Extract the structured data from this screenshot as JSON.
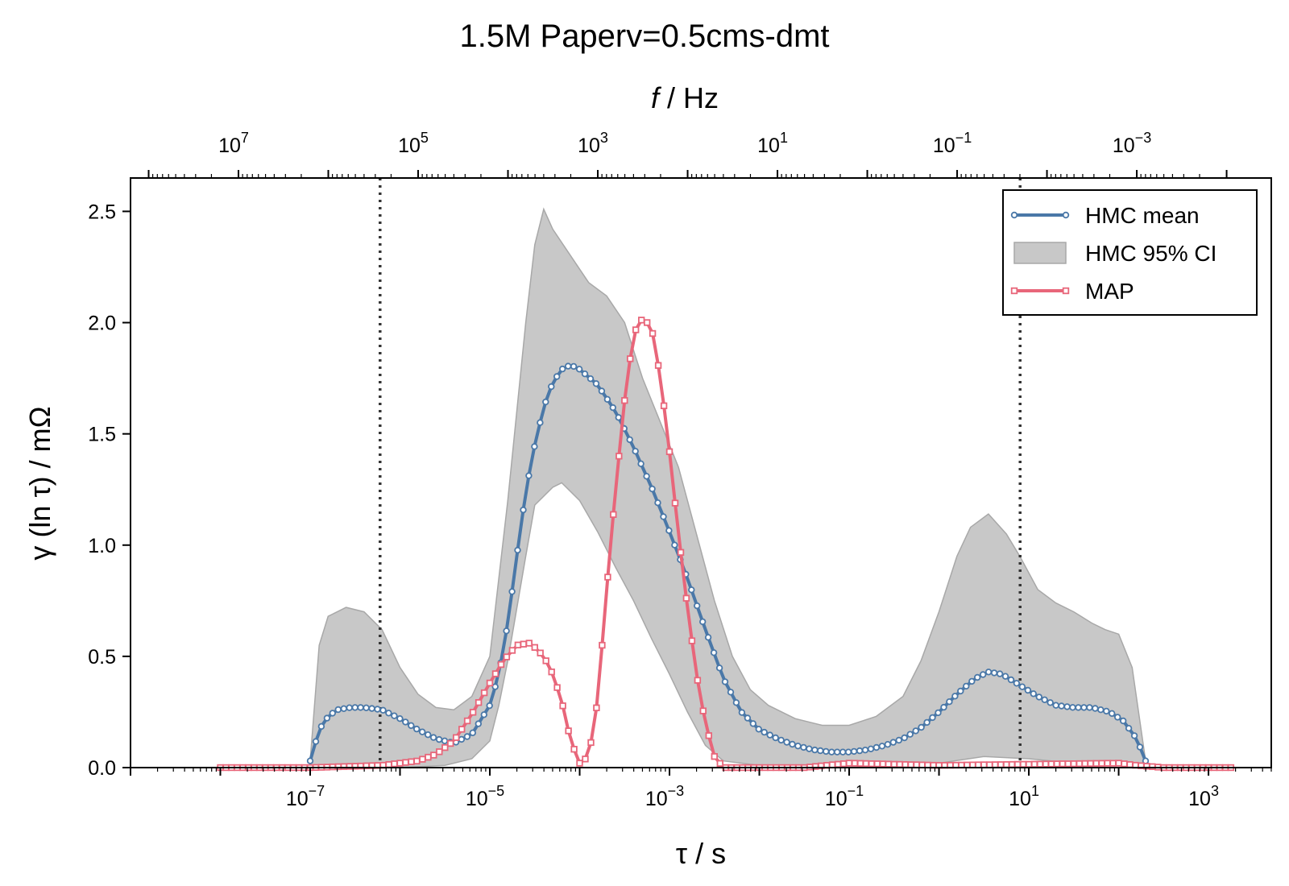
{
  "title": "1.5M Paperv=0.5cms-dmt",
  "chart_data": {
    "type": "line",
    "title": "1.5M Paperv=0.5cms-dmt",
    "xlabel": "τ / s",
    "ylabel": "γ (ln τ) / mΩ",
    "x2label": "f / Hz",
    "x_scale": "log",
    "x_range": [
      1e-09,
      5000
    ],
    "y_range": [
      0,
      2.65
    ],
    "x_ticks": [
      {
        "value": 1e-07,
        "base": "10",
        "exp": "−7"
      },
      {
        "value": 1e-05,
        "base": "10",
        "exp": "−5"
      },
      {
        "value": 0.001,
        "base": "10",
        "exp": "−3"
      },
      {
        "value": 0.1,
        "base": "10",
        "exp": "−1"
      },
      {
        "value": 10,
        "base": "10",
        "exp": "1"
      },
      {
        "value": 1000,
        "base": "10",
        "exp": "3"
      }
    ],
    "x2_ticks": [
      {
        "value": 10000000.0,
        "base": "10",
        "exp": "7"
      },
      {
        "value": 100000.0,
        "base": "10",
        "exp": "5"
      },
      {
        "value": 1000.0,
        "base": "10",
        "exp": "3"
      },
      {
        "value": 10,
        "base": "10",
        "exp": "1"
      },
      {
        "value": 0.1,
        "base": "10",
        "exp": "−1"
      },
      {
        "value": 0.001,
        "base": "10",
        "exp": "−3"
      }
    ],
    "y_ticks": [
      "0.0",
      "0.5",
      "1.0",
      "1.5",
      "2.0",
      "2.5"
    ],
    "grid": false,
    "legend_position": "top-right",
    "vlines_tau": [
      6e-07,
      8
    ],
    "series": [
      {
        "name": "HMC mean",
        "color": "#4a78a8",
        "marker": "circle",
        "points": [
          [
            -7.0,
            0.03
          ],
          [
            -6.9,
            0.17
          ],
          [
            -6.8,
            0.23
          ],
          [
            -6.7,
            0.26
          ],
          [
            -6.55,
            0.27
          ],
          [
            -6.4,
            0.27
          ],
          [
            -6.2,
            0.26
          ],
          [
            -6.0,
            0.22
          ],
          [
            -5.8,
            0.17
          ],
          [
            -5.6,
            0.13
          ],
          [
            -5.4,
            0.11
          ],
          [
            -5.2,
            0.15
          ],
          [
            -5.0,
            0.28
          ],
          [
            -4.9,
            0.42
          ],
          [
            -4.8,
            0.65
          ],
          [
            -4.7,
            0.95
          ],
          [
            -4.6,
            1.24
          ],
          [
            -4.5,
            1.45
          ],
          [
            -4.4,
            1.62
          ],
          [
            -4.3,
            1.73
          ],
          [
            -4.2,
            1.79
          ],
          [
            -4.1,
            1.81
          ],
          [
            -4.0,
            1.79
          ],
          [
            -3.8,
            1.72
          ],
          [
            -3.6,
            1.6
          ],
          [
            -3.4,
            1.44
          ],
          [
            -3.2,
            1.26
          ],
          [
            -3.0,
            1.06
          ],
          [
            -2.8,
            0.85
          ],
          [
            -2.6,
            0.62
          ],
          [
            -2.4,
            0.4
          ],
          [
            -2.2,
            0.25
          ],
          [
            -2.0,
            0.17
          ],
          [
            -1.8,
            0.13
          ],
          [
            -1.6,
            0.1
          ],
          [
            -1.4,
            0.08
          ],
          [
            -1.2,
            0.07
          ],
          [
            -1.0,
            0.07
          ],
          [
            -0.8,
            0.08
          ],
          [
            -0.6,
            0.1
          ],
          [
            -0.4,
            0.13
          ],
          [
            -0.2,
            0.18
          ],
          [
            0.0,
            0.25
          ],
          [
            0.2,
            0.33
          ],
          [
            0.4,
            0.4
          ],
          [
            0.55,
            0.43
          ],
          [
            0.7,
            0.42
          ],
          [
            0.9,
            0.37
          ],
          [
            1.1,
            0.32
          ],
          [
            1.3,
            0.28
          ],
          [
            1.5,
            0.27
          ],
          [
            1.7,
            0.27
          ],
          [
            1.9,
            0.25
          ],
          [
            2.05,
            0.21
          ],
          [
            2.2,
            0.13
          ],
          [
            2.3,
            0.03
          ]
        ]
      },
      {
        "name": "HMC 95% CI",
        "color": "#c8c8c8",
        "type": "area",
        "upper": [
          [
            -7.0,
            0.03
          ],
          [
            -6.9,
            0.55
          ],
          [
            -6.8,
            0.68
          ],
          [
            -6.6,
            0.72
          ],
          [
            -6.4,
            0.7
          ],
          [
            -6.2,
            0.62
          ],
          [
            -6.0,
            0.45
          ],
          [
            -5.8,
            0.33
          ],
          [
            -5.6,
            0.27
          ],
          [
            -5.4,
            0.26
          ],
          [
            -5.2,
            0.32
          ],
          [
            -5.0,
            0.5
          ],
          [
            -4.8,
            1.2
          ],
          [
            -4.6,
            2.0
          ],
          [
            -4.5,
            2.35
          ],
          [
            -4.4,
            2.51
          ],
          [
            -4.3,
            2.42
          ],
          [
            -4.1,
            2.3
          ],
          [
            -3.9,
            2.18
          ],
          [
            -3.7,
            2.12
          ],
          [
            -3.5,
            2.0
          ],
          [
            -3.3,
            1.75
          ],
          [
            -3.1,
            1.55
          ],
          [
            -2.9,
            1.35
          ],
          [
            -2.7,
            1.05
          ],
          [
            -2.5,
            0.75
          ],
          [
            -2.3,
            0.5
          ],
          [
            -2.1,
            0.35
          ],
          [
            -1.9,
            0.28
          ],
          [
            -1.6,
            0.22
          ],
          [
            -1.3,
            0.19
          ],
          [
            -1.0,
            0.19
          ],
          [
            -0.7,
            0.23
          ],
          [
            -0.4,
            0.32
          ],
          [
            -0.2,
            0.48
          ],
          [
            0.0,
            0.7
          ],
          [
            0.2,
            0.95
          ],
          [
            0.35,
            1.08
          ],
          [
            0.55,
            1.14
          ],
          [
            0.75,
            1.05
          ],
          [
            0.9,
            0.95
          ],
          [
            1.1,
            0.8
          ],
          [
            1.3,
            0.74
          ],
          [
            1.5,
            0.7
          ],
          [
            1.7,
            0.65
          ],
          [
            1.85,
            0.62
          ],
          [
            2.0,
            0.6
          ],
          [
            2.15,
            0.45
          ],
          [
            2.3,
            0.03
          ]
        ],
        "lower": [
          [
            -7.0,
            0.0
          ],
          [
            -6.0,
            0.0
          ],
          [
            -5.5,
            0.01
          ],
          [
            -5.2,
            0.04
          ],
          [
            -5.0,
            0.12
          ],
          [
            -4.9,
            0.28
          ],
          [
            -4.8,
            0.48
          ],
          [
            -4.6,
            0.95
          ],
          [
            -4.5,
            1.18
          ],
          [
            -4.3,
            1.26
          ],
          [
            -4.2,
            1.28
          ],
          [
            -4.0,
            1.2
          ],
          [
            -3.8,
            1.06
          ],
          [
            -3.6,
            0.9
          ],
          [
            -3.4,
            0.75
          ],
          [
            -3.2,
            0.58
          ],
          [
            -3.0,
            0.42
          ],
          [
            -2.8,
            0.25
          ],
          [
            -2.6,
            0.1
          ],
          [
            -2.4,
            0.03
          ],
          [
            -2.0,
            0.01
          ],
          [
            -1.0,
            0.0
          ],
          [
            0.0,
            0.02
          ],
          [
            0.5,
            0.05
          ],
          [
            1.0,
            0.04
          ],
          [
            1.5,
            0.02
          ],
          [
            2.0,
            0.01
          ],
          [
            2.3,
            0.0
          ]
        ]
      },
      {
        "name": "MAP",
        "color": "#e8667a",
        "marker": "square",
        "points": [
          [
            -8.0,
            0.0
          ],
          [
            -7.0,
            0.0
          ],
          [
            -6.2,
            0.01
          ],
          [
            -5.8,
            0.03
          ],
          [
            -5.6,
            0.06
          ],
          [
            -5.4,
            0.12
          ],
          [
            -5.2,
            0.24
          ],
          [
            -5.0,
            0.38
          ],
          [
            -4.85,
            0.48
          ],
          [
            -4.7,
            0.55
          ],
          [
            -4.55,
            0.56
          ],
          [
            -4.4,
            0.5
          ],
          [
            -4.3,
            0.42
          ],
          [
            -4.2,
            0.3
          ],
          [
            -4.1,
            0.12
          ],
          [
            -4.0,
            0.02
          ],
          [
            -3.9,
            0.05
          ],
          [
            -3.8,
            0.3
          ],
          [
            -3.7,
            0.8
          ],
          [
            -3.6,
            1.25
          ],
          [
            -3.5,
            1.65
          ],
          [
            -3.4,
            1.95
          ],
          [
            -3.3,
            2.02
          ],
          [
            -3.2,
            1.98
          ],
          [
            -3.1,
            1.75
          ],
          [
            -3.0,
            1.42
          ],
          [
            -2.9,
            1.05
          ],
          [
            -2.8,
            0.72
          ],
          [
            -2.7,
            0.42
          ],
          [
            -2.6,
            0.2
          ],
          [
            -2.5,
            0.05
          ],
          [
            -2.4,
            0.0
          ],
          [
            -1.5,
            0.0
          ],
          [
            -1.0,
            0.02
          ],
          [
            0.0,
            0.01
          ],
          [
            1.0,
            0.015
          ],
          [
            2.0,
            0.02
          ],
          [
            2.2,
            0.01
          ],
          [
            2.5,
            0.0
          ],
          [
            3.0,
            0.0
          ],
          [
            3.25,
            0.0
          ]
        ]
      }
    ]
  }
}
